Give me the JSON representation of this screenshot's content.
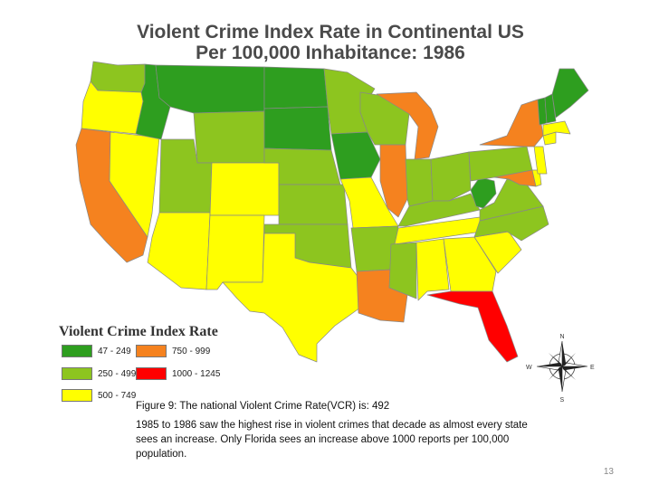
{
  "title_line1": "Violent Crime Index Rate in Continental US",
  "title_line2": "Per 100,000 Inhabitance: 1986",
  "legend": {
    "title": "Violent Crime Index Rate",
    "items": [
      {
        "label": "47 - 249",
        "color": "#2e9e1f"
      },
      {
        "label": "250 - 499",
        "color": "#8dc51f"
      },
      {
        "label": "500 - 749",
        "color": "#ffff00"
      },
      {
        "label": "750 - 999",
        "color": "#f5821f"
      },
      {
        "label": "1000 - 1245",
        "color": "#ff0000"
      }
    ]
  },
  "compass": {
    "n": "N",
    "s": "S",
    "e": "E",
    "w": "W"
  },
  "caption_line1": "Figure 9: The national Violent Crime Rate(VCR) is: 492",
  "caption_line2": "1985 to 1986 saw the highest rise in violent crimes that decade as almost every state sees an increase.  Only Florida sees an increase above 1000 reports per 100,000 population.",
  "page_number": "13"
}
